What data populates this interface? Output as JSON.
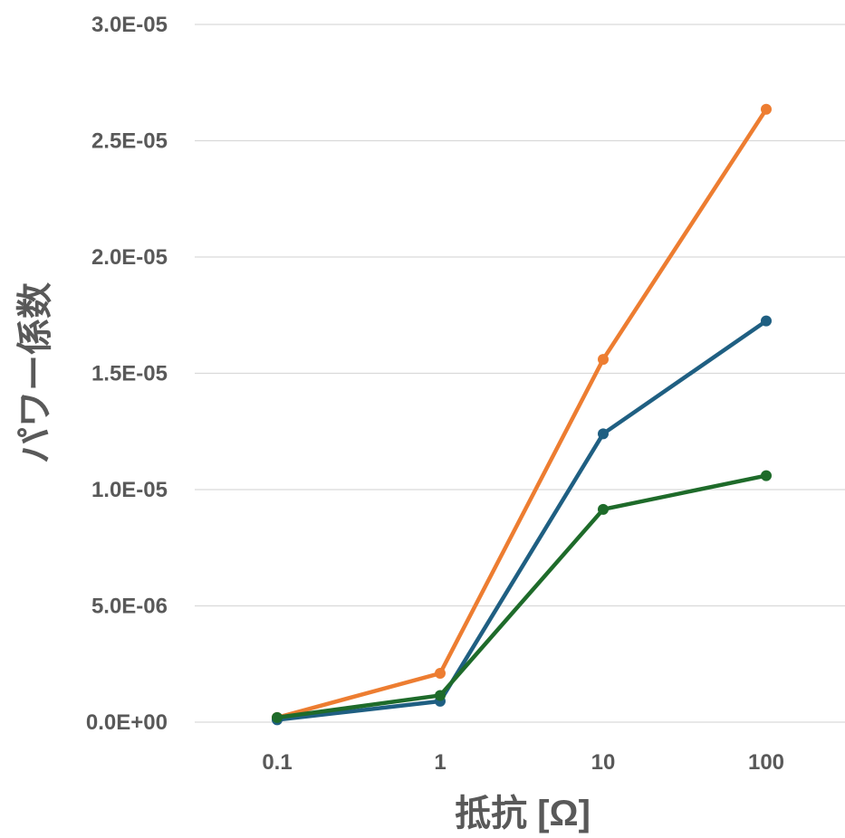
{
  "chart_data": {
    "type": "line",
    "title": "",
    "xlabel": "抵抗 [Ω]",
    "ylabel": "パワー係数",
    "x_scale": "log",
    "categories": [
      "0.1",
      "1",
      "10",
      "100"
    ],
    "x": [
      0.1,
      1,
      10,
      100
    ],
    "ylim": [
      0,
      3e-05
    ],
    "y_ticks": [
      0,
      5e-06,
      1e-05,
      1.5e-05,
      2e-05,
      2.5e-05,
      3e-05
    ],
    "y_tick_labels": [
      "0.0E+00",
      "5.0E-06",
      "1.0E-05",
      "1.5E-05",
      "2.0E-05",
      "2.5E-05",
      "3.0E-05"
    ],
    "grid": true,
    "legend": "none",
    "series": [
      {
        "color": "#ED7D31",
        "values": [
          2e-07,
          2.1e-06,
          1.56e-05,
          2.635e-05
        ]
      },
      {
        "color": "#1F5F82",
        "values": [
          1e-07,
          9e-07,
          1.24e-05,
          1.725e-05
        ]
      },
      {
        "color": "#1E6B2A",
        "values": [
          2e-07,
          1.15e-06,
          9.15e-06,
          1.06e-05
        ]
      }
    ]
  }
}
